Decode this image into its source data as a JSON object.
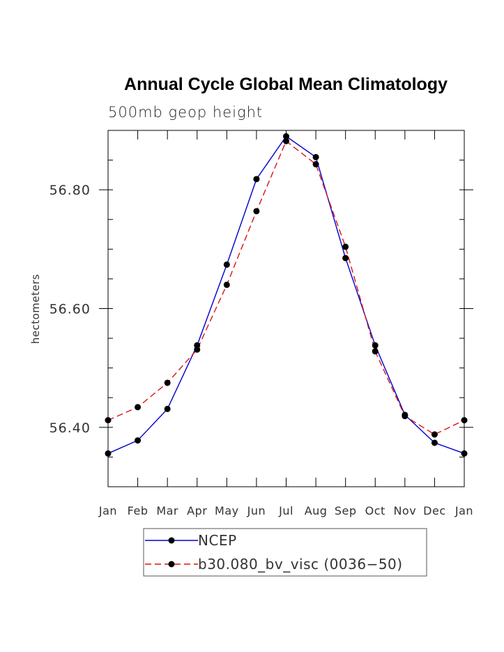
{
  "chart_data": {
    "type": "line",
    "title": "Annual Cycle Global Mean Climatology",
    "subtitle": "500mb geop height",
    "ylabel": "hectometers",
    "xlabel": "",
    "categories": [
      "Jan",
      "Feb",
      "Mar",
      "Apr",
      "May",
      "Jun",
      "Jul",
      "Aug",
      "Sep",
      "Oct",
      "Nov",
      "Dec",
      "Jan"
    ],
    "ylim": [
      56.3,
      56.9
    ],
    "ytick_labels": [
      "56.40",
      "56.60",
      "56.80"
    ],
    "yticks": [
      56.4,
      56.6,
      56.8
    ],
    "grid": false,
    "legend_position": "bottom",
    "series": [
      {
        "name": "NCEP",
        "color": "#0000cc",
        "line_style": "solid",
        "values": [
          56.356,
          56.378,
          56.431,
          56.538,
          56.674,
          56.818,
          56.89,
          56.855,
          56.685,
          56.538,
          56.421,
          56.374,
          56.356
        ]
      },
      {
        "name": "b30.080_bv_visc (0036−50)",
        "color": "#dd1111",
        "line_style": "dashed",
        "values": [
          56.412,
          56.434,
          56.475,
          56.531,
          56.64,
          56.764,
          56.882,
          56.843,
          56.704,
          56.528,
          56.419,
          56.388,
          56.412
        ]
      }
    ]
  }
}
